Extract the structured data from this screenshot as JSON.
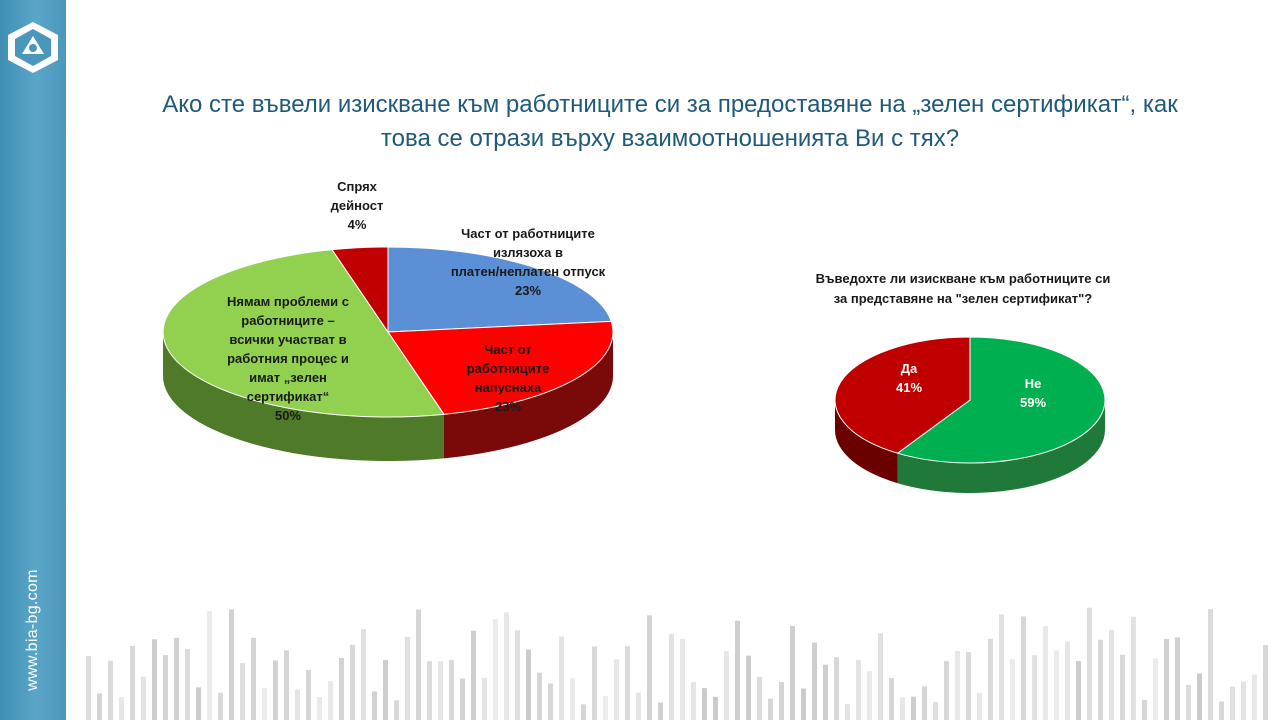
{
  "sidebar": {
    "site_url": "www.bia-bg.com"
  },
  "title": "Ако сте въвели изискване към работниците си за предоставяне на „зелен сертификат“, как това се отрази върху взаимоотношенията Ви с тях?",
  "chart_data": [
    {
      "type": "pie",
      "title": "",
      "slices": [
        {
          "lines": [
            "Част от работниците",
            "излязоха в",
            "платен/неплатен отпуск",
            "23%"
          ],
          "value": 23,
          "color": "#5b8fd6",
          "side": "#2f5590"
        },
        {
          "lines": [
            "Част от",
            "работниците",
            "напуснаха",
            "23%"
          ],
          "value": 23,
          "color": "#ff0000",
          "side": "#7a0a0a"
        },
        {
          "lines": [
            "Нямам проблеми с",
            "работниците –",
            "всички участват в",
            "работния процес и",
            "имат „зелен",
            "сертификат“",
            "50%"
          ],
          "value": 50,
          "color": "#92d050",
          "side": "#4f7a2a"
        },
        {
          "lines": [
            "Спрях",
            "дейност",
            "4%"
          ],
          "value": 4,
          "color": "#c00000",
          "side": "#6a0000"
        }
      ]
    },
    {
      "type": "pie",
      "title": "Въведохте ли изискване към работниците си за представяне на \"зелен сертификат\"?",
      "title_lines": [
        "Въведохте ли изискване към работниците си",
        "за представяне на \"зелен сертификат\"?"
      ],
      "slices": [
        {
          "lines": [
            "Не",
            "59%"
          ],
          "value": 59,
          "color": "#00b050",
          "side": "#1f7a3a"
        },
        {
          "lines": [
            "Да",
            "41%"
          ],
          "value": 41,
          "color": "#c00000",
          "side": "#6a0000"
        }
      ]
    }
  ]
}
